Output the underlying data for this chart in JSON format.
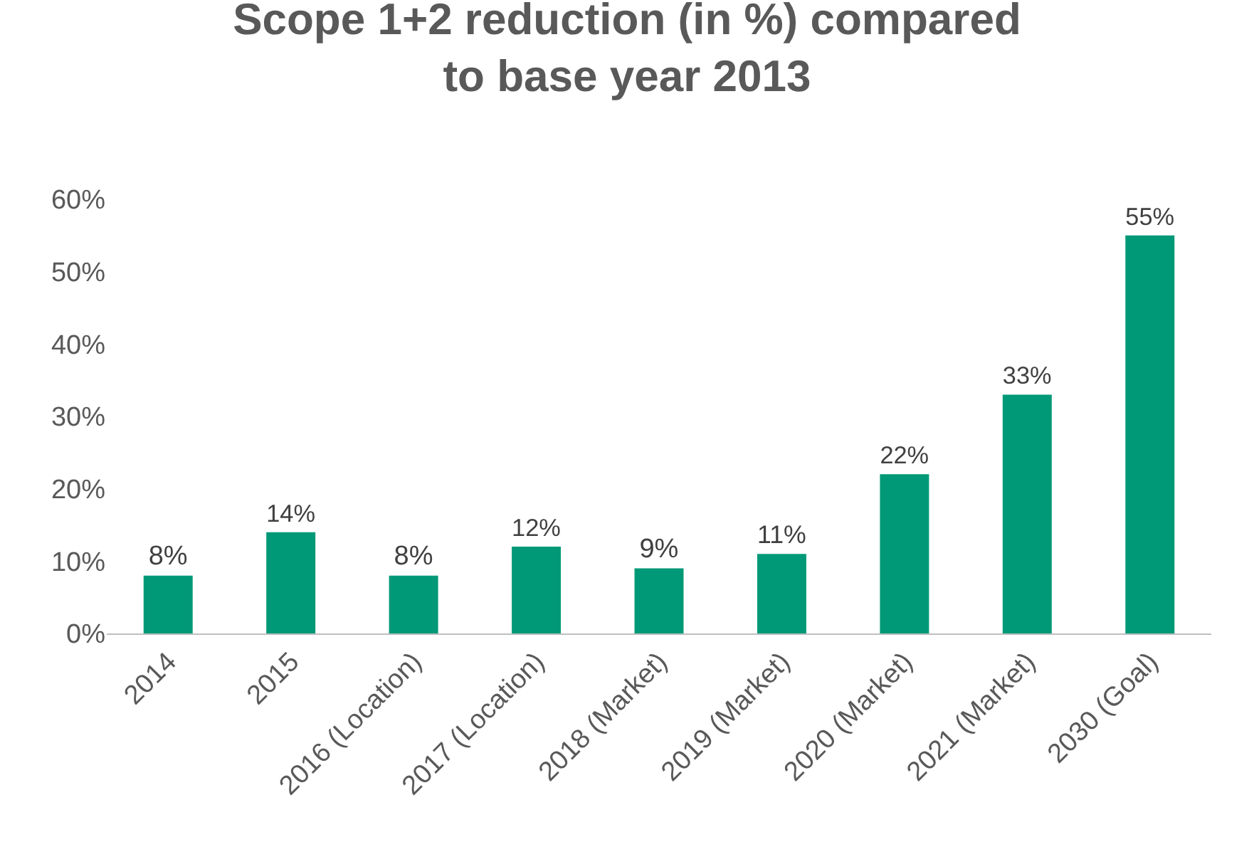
{
  "chart_data": {
    "type": "bar",
    "title": "Scope 1+2 reduction (in %) compared\nto base year 2013",
    "categories": [
      "2014",
      "2015",
      "2016 (Location)",
      "2017 (Location)",
      "2018 (Market)",
      "2019 (Market)",
      "2020 (Market)",
      "2021 (Market)",
      "2030 (Goal)"
    ],
    "values": [
      8,
      14,
      8,
      12,
      9,
      11,
      22,
      33,
      55
    ],
    "value_labels": [
      "8%",
      "14%",
      "8%",
      "12%",
      "9%",
      "11%",
      "22%",
      "33%",
      "55%"
    ],
    "color": "#009977",
    "ylim": [
      0,
      60
    ],
    "yticks": [
      {
        "value": 0,
        "label": "0%"
      },
      {
        "value": 10,
        "label": "10%"
      },
      {
        "value": 20,
        "label": "20%"
      },
      {
        "value": 30,
        "label": "30%"
      },
      {
        "value": 40,
        "label": "40%"
      },
      {
        "value": 50,
        "label": "50%"
      },
      {
        "value": 60,
        "label": "60%"
      }
    ],
    "grid": false,
    "legend": false
  }
}
